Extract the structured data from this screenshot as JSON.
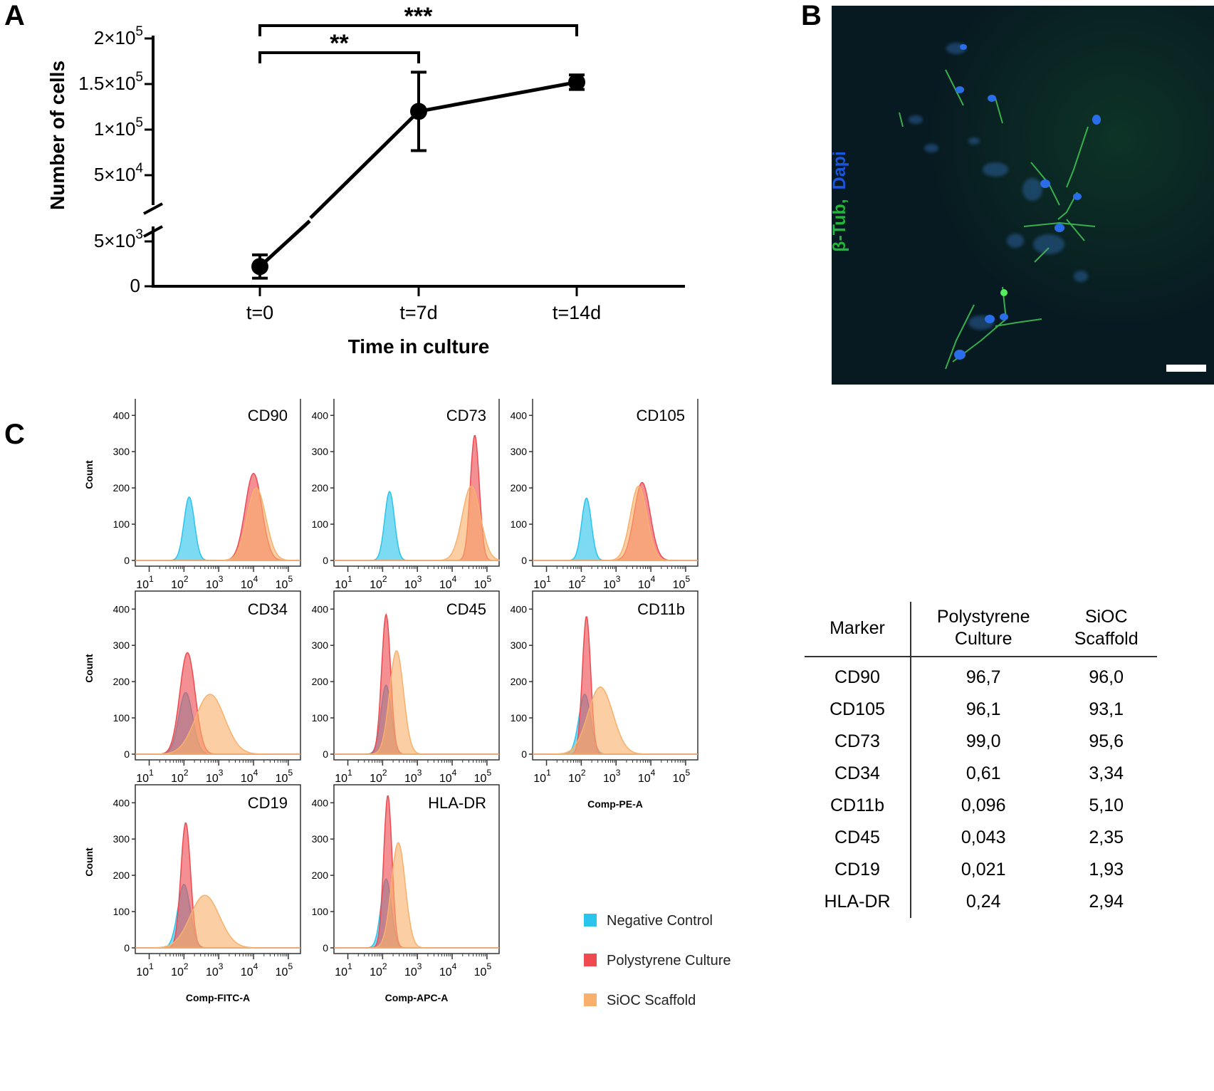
{
  "panels": {
    "a": "A",
    "b": "B",
    "c": "C"
  },
  "chart_data": [
    {
      "type": "line",
      "panel": "A",
      "xlabel": "Time in culture",
      "ylabel": "Number of cells",
      "categories": [
        "t=0",
        "t=7d",
        "t=14d"
      ],
      "series": [
        {
          "name": "Number of cells",
          "values": [
            2200,
            120000,
            152000
          ],
          "errors": [
            1300,
            43000,
            8000
          ]
        }
      ],
      "y_ticks": [
        {
          "label": "0",
          "value": 0
        },
        {
          "label": "5×10³",
          "value": 5000
        },
        {
          "label": "5×10⁴",
          "value": 50000
        },
        {
          "label": "1×10⁵",
          "value": 100000
        },
        {
          "label": "1.5×10⁵",
          "value": 150000
        },
        {
          "label": "2×10⁵",
          "value": 200000
        }
      ],
      "axis_break": [
        5000,
        50000
      ],
      "significance": [
        {
          "from": "t=0",
          "to": "t=7d",
          "label": "**"
        },
        {
          "from": "t=0",
          "to": "t=14d",
          "label": "***"
        }
      ]
    },
    {
      "type": "area",
      "panel": "C",
      "description_axes": {
        "ylabel": "Count",
        "x_scale": "log",
        "x_decades": [
          1,
          5
        ],
        "y_range": [
          0,
          430
        ]
      },
      "y_ticks": [
        "0",
        "100",
        "200",
        "300",
        "400"
      ],
      "x_ticks": [
        {
          "base": "10",
          "exp": "1"
        },
        {
          "base": "10",
          "exp": "2"
        },
        {
          "base": "10",
          "exp": "3"
        },
        {
          "base": "10",
          "exp": "4"
        },
        {
          "base": "10",
          "exp": "5"
        }
      ],
      "legend": [
        {
          "label": "Negative Control",
          "color": "#2bc4ec"
        },
        {
          "label": "Polystyrene  Culture",
          "color": "#ee4a50"
        },
        {
          "label": "SiOC Scaffold",
          "color": "#f8b06c"
        }
      ],
      "histograms": [
        {
          "title": "CD90",
          "ylabel": "Count",
          "xlabel": "",
          "series": [
            {
              "name": "Negative Control",
              "mu": 2.15,
              "sigma": 0.15,
              "peak": 175
            },
            {
              "name": "Polystyrene Culture",
              "mu": 4.0,
              "sigma": 0.24,
              "peak": 240
            },
            {
              "name": "SiOC Scaffold",
              "mu": 4.08,
              "sigma": 0.27,
              "peak": 200
            }
          ]
        },
        {
          "title": "CD73",
          "ylabel": "",
          "xlabel": "",
          "series": [
            {
              "name": "Negative Control",
              "mu": 2.2,
              "sigma": 0.14,
              "peak": 190
            },
            {
              "name": "Polystyrene Culture",
              "mu": 4.65,
              "sigma": 0.13,
              "peak": 345
            },
            {
              "name": "SiOC Scaffold",
              "mu": 4.55,
              "sigma": 0.26,
              "peak": 205
            }
          ]
        },
        {
          "title": "CD105",
          "ylabel": "",
          "xlabel": "",
          "series": [
            {
              "name": "Negative Control",
              "mu": 2.15,
              "sigma": 0.14,
              "peak": 172
            },
            {
              "name": "Polystyrene Culture",
              "mu": 3.75,
              "sigma": 0.23,
              "peak": 215
            },
            {
              "name": "SiOC Scaffold",
              "mu": 3.65,
              "sigma": 0.24,
              "peak": 205
            }
          ]
        },
        {
          "title": "CD34",
          "ylabel": "Count",
          "xlabel": "",
          "series": [
            {
              "name": "Negative Control",
              "mu": 2.05,
              "sigma": 0.2,
              "peak": 170
            },
            {
              "name": "Polystyrene Culture",
              "mu": 2.1,
              "sigma": 0.22,
              "peak": 280
            },
            {
              "name": "SiOC Scaffold",
              "mu": 2.75,
              "sigma": 0.42,
              "peak": 165
            }
          ]
        },
        {
          "title": "CD45",
          "ylabel": "",
          "xlabel": "",
          "series": [
            {
              "name": "Negative Control",
              "mu": 2.1,
              "sigma": 0.15,
              "peak": 190
            },
            {
              "name": "Polystyrene Culture",
              "mu": 2.1,
              "sigma": 0.13,
              "peak": 385
            },
            {
              "name": "SiOC Scaffold",
              "mu": 2.4,
              "sigma": 0.2,
              "peak": 285
            }
          ]
        },
        {
          "title": "CD11b",
          "ylabel": "",
          "xlabel": "Comp-PE-A",
          "series": [
            {
              "name": "Negative Control",
              "mu": 2.1,
              "sigma": 0.17,
              "peak": 165
            },
            {
              "name": "Polystyrene Culture",
              "mu": 2.15,
              "sigma": 0.12,
              "peak": 380
            },
            {
              "name": "SiOC Scaffold",
              "mu": 2.55,
              "sigma": 0.36,
              "peak": 185
            }
          ]
        },
        {
          "title": "CD19",
          "ylabel": "Count",
          "xlabel": "Comp-FITC-A",
          "series": [
            {
              "name": "Negative Control",
              "mu": 2.0,
              "sigma": 0.18,
              "peak": 175
            },
            {
              "name": "Polystyrene Culture",
              "mu": 2.05,
              "sigma": 0.14,
              "peak": 345
            },
            {
              "name": "SiOC Scaffold",
              "mu": 2.6,
              "sigma": 0.42,
              "peak": 145
            }
          ]
        },
        {
          "title": "HLA-DR",
          "ylabel": "",
          "xlabel": "Comp-APC-A",
          "series": [
            {
              "name": "Negative Control",
              "mu": 2.1,
              "sigma": 0.15,
              "peak": 190
            },
            {
              "name": "Polystyrene Culture",
              "mu": 2.15,
              "sigma": 0.12,
              "peak": 420
            },
            {
              "name": "SiOC Scaffold",
              "mu": 2.45,
              "sigma": 0.2,
              "peak": 290
            }
          ]
        }
      ]
    }
  ],
  "micrograph": {
    "label_green": "β-Tub,",
    "label_blue": "Dapi"
  },
  "table": {
    "headers": [
      "Marker",
      "Polystyrene\nCulture",
      "SiOC\nScaffold"
    ],
    "rows": [
      [
        "CD90",
        "96,7",
        "96,0"
      ],
      [
        "CD105",
        "96,1",
        "93,1"
      ],
      [
        "CD73",
        "99,0",
        "95,6"
      ],
      [
        "CD34",
        "0,61",
        "3,34"
      ],
      [
        "CD11b",
        "0,096",
        "5,10"
      ],
      [
        "CD45",
        "0,043",
        "2,35"
      ],
      [
        "CD19",
        "0,021",
        "1,93"
      ],
      [
        "HLA-DR",
        "0,24",
        "2,94"
      ]
    ]
  }
}
